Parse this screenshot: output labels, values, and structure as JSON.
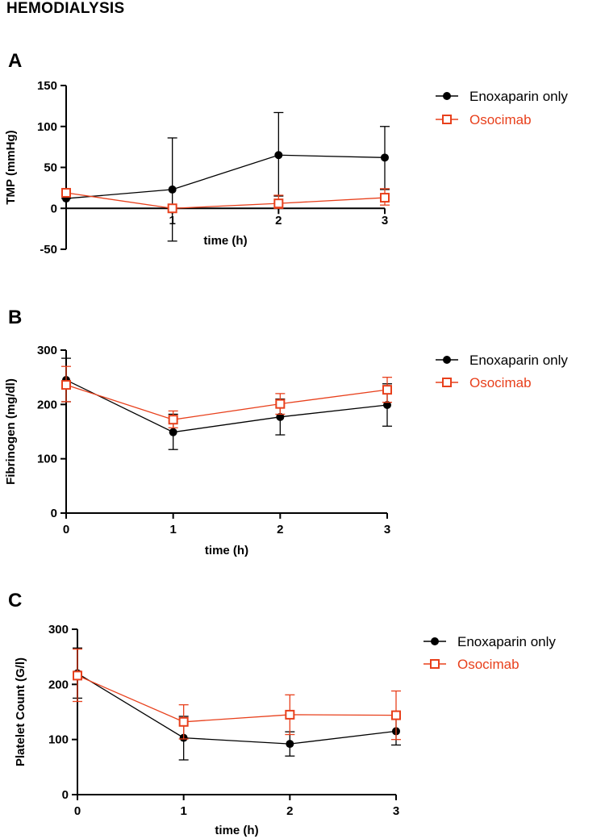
{
  "title": "HEMODIALYSIS",
  "colors": {
    "enoxaparin": "#000000",
    "osocimab": "#e8401c"
  },
  "chart_data": [
    {
      "panel": "A",
      "type": "line",
      "xlabel": "time (h)",
      "ylabel": "TMP (mmHg)",
      "x": [
        0,
        1,
        2,
        3
      ],
      "xticks": [
        "1",
        "2",
        "3"
      ],
      "yticks": [
        -50,
        0,
        50,
        100,
        150
      ],
      "ylim": [
        -50,
        150
      ],
      "legend_position": "right",
      "series": [
        {
          "name": "Enoxaparin only",
          "marker": "circle",
          "values": [
            12,
            23,
            65,
            62
          ],
          "err_upper": [
            20,
            86,
            117,
            100
          ],
          "err_lower": [
            12,
            -40,
            15,
            23
          ]
        },
        {
          "name": "Osocimab",
          "marker": "square",
          "values": [
            19,
            0,
            6,
            13
          ],
          "err_upper": [
            22,
            0,
            16,
            24
          ],
          "err_lower": [
            16,
            0,
            0,
            4
          ]
        }
      ]
    },
    {
      "panel": "B",
      "type": "line",
      "xlabel": "time (h)",
      "ylabel": "Fibrinogen (mg/dl)",
      "x": [
        0,
        1,
        2,
        3
      ],
      "xticks": [
        "0",
        "1",
        "2",
        "3"
      ],
      "yticks": [
        0,
        100,
        200,
        300
      ],
      "ylim": [
        0,
        300
      ],
      "legend_position": "right",
      "series": [
        {
          "name": "Enoxaparin only",
          "marker": "circle",
          "values": [
            245,
            149,
            177,
            199
          ],
          "err_upper": [
            285,
            182,
            210,
            238
          ],
          "err_lower": [
            205,
            117,
            144,
            160
          ]
        },
        {
          "name": "Osocimab",
          "marker": "square",
          "values": [
            236,
            172,
            201,
            227
          ],
          "err_upper": [
            270,
            188,
            220,
            250
          ],
          "err_lower": [
            205,
            157,
            182,
            204
          ]
        }
      ]
    },
    {
      "panel": "C",
      "type": "line",
      "xlabel": "time (h)",
      "ylabel": "Platelet Count (G/l)",
      "x": [
        0,
        1,
        2,
        3
      ],
      "xticks": [
        "0",
        "1",
        "2",
        "3"
      ],
      "yticks": [
        0,
        100,
        200,
        300
      ],
      "ylim": [
        0,
        300
      ],
      "legend_position": "right",
      "series": [
        {
          "name": "Enoxaparin only",
          "marker": "circle",
          "values": [
            220,
            103,
            92,
            115
          ],
          "err_upper": [
            266,
            142,
            114,
            140
          ],
          "err_lower": [
            175,
            63,
            70,
            90
          ]
        },
        {
          "name": "Osocimab",
          "marker": "square",
          "values": [
            216,
            132,
            145,
            144
          ],
          "err_upper": [
            264,
            163,
            181,
            188
          ],
          "err_lower": [
            169,
            101,
            109,
            100
          ]
        }
      ]
    }
  ]
}
